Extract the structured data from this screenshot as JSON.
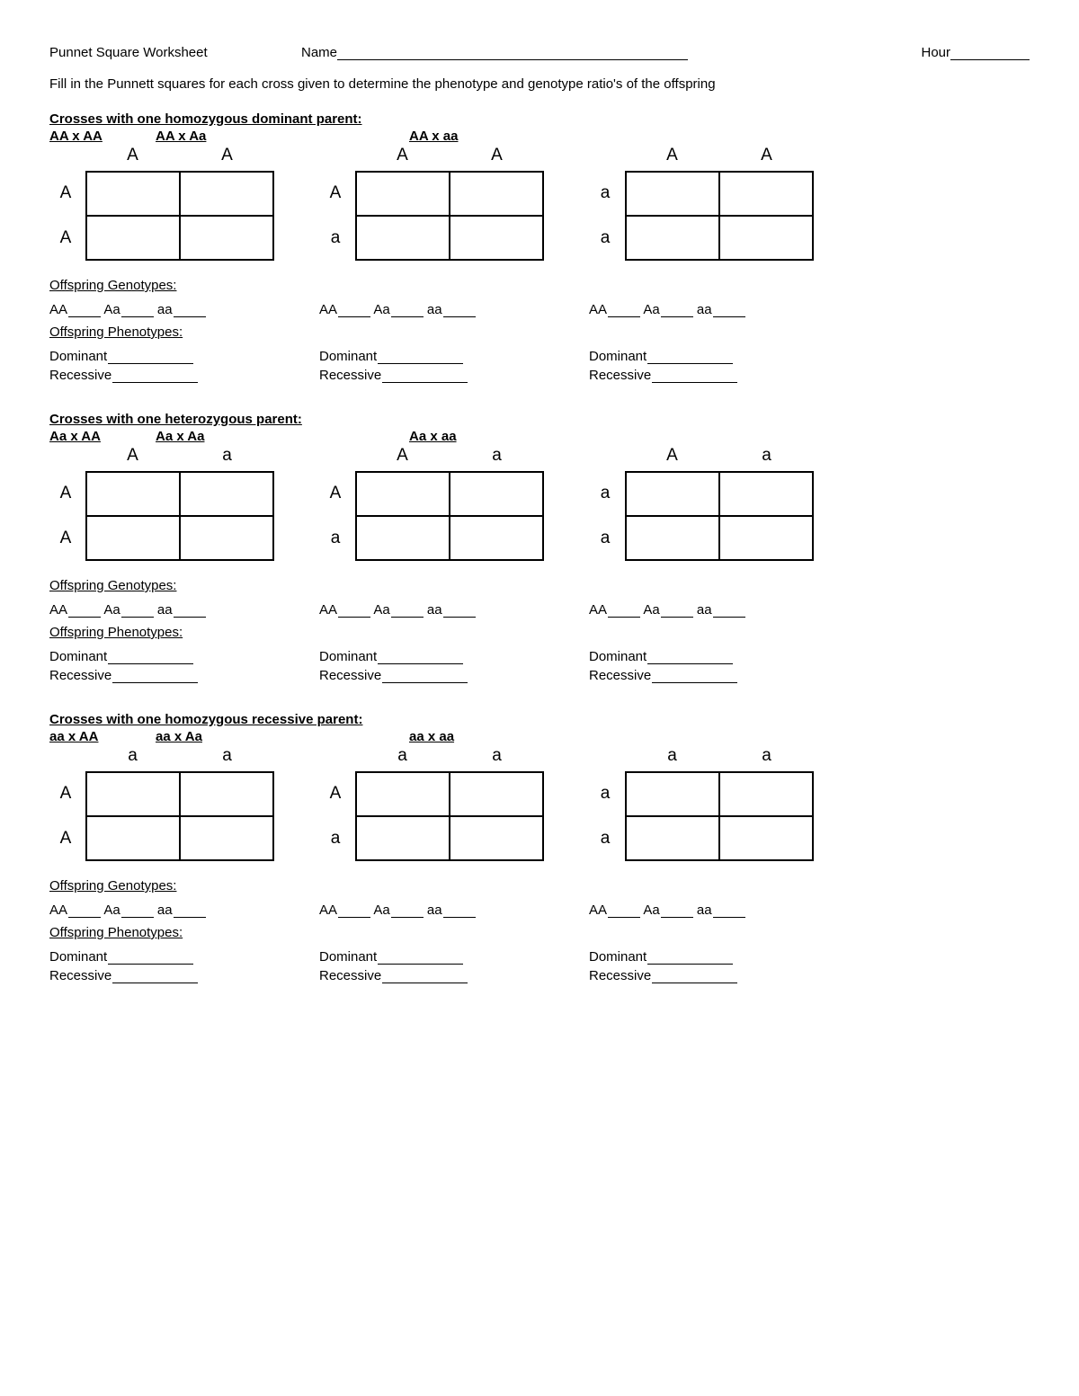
{
  "header": {
    "title": "Punnet Square Worksheet",
    "name_label": "Name",
    "hour_label": "Hour"
  },
  "instructions": "Fill in the Punnett squares for each cross given to determine the phenotype and genotype ratio's of the offspring",
  "labels": {
    "offspring_genotypes": "Offspring Genotypes:",
    "offspring_phenotypes": "Offspring Phenotypes:",
    "AA": "AA",
    "Aa": "Aa",
    "aa": "aa",
    "dominant": "Dominant",
    "recessive": "Recessive"
  },
  "sections": [
    {
      "title": "Crosses with one homozygous dominant parent:",
      "cross_labels": [
        "AA x AA",
        "AA x Aa",
        "AA x aa"
      ],
      "squares": [
        {
          "top": [
            "A",
            "A"
          ],
          "side": [
            "A",
            "A"
          ]
        },
        {
          "top": [
            "A",
            "A"
          ],
          "side": [
            "A",
            "a"
          ]
        },
        {
          "top": [
            "A",
            "A"
          ],
          "side": [
            "a",
            "a"
          ]
        }
      ]
    },
    {
      "title": "Crosses with one heterozygous parent:",
      "cross_labels": [
        "Aa x AA",
        "Aa x Aa",
        "Aa x aa"
      ],
      "squares": [
        {
          "top": [
            "A",
            "a"
          ],
          "side": [
            "A",
            "A"
          ]
        },
        {
          "top": [
            "A",
            "a"
          ],
          "side": [
            "A",
            "a"
          ]
        },
        {
          "top": [
            "A",
            "a"
          ],
          "side": [
            "a",
            "a"
          ]
        }
      ]
    },
    {
      "title": "Crosses with one homozygous recessive parent:",
      "cross_labels": [
        "aa x AA",
        "aa x Aa",
        "aa x aa"
      ],
      "squares": [
        {
          "top": [
            "a",
            "a"
          ],
          "side": [
            "A",
            "A"
          ]
        },
        {
          "top": [
            "a",
            "a"
          ],
          "side": [
            "A",
            "a"
          ]
        },
        {
          "top": [
            "a",
            "a"
          ],
          "side": [
            "a",
            "a"
          ]
        }
      ]
    }
  ]
}
